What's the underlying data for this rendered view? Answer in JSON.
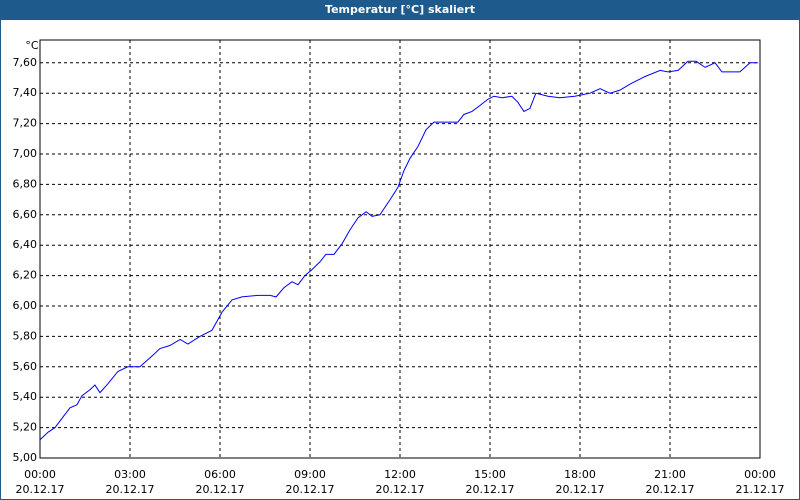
{
  "chart_data": {
    "type": "line",
    "title": "Temperatur [°C] skaliert",
    "y_label": "°C",
    "x": [
      0,
      0.27,
      0.5,
      0.73,
      1,
      1.23,
      1.4,
      1.67,
      1.83,
      2,
      2.27,
      2.6,
      2.93,
      3.33,
      3.73,
      4,
      4.33,
      4.67,
      4.93,
      5.33,
      5.73,
      6.07,
      6.4,
      6.73,
      7.27,
      7.67,
      7.87,
      8.13,
      8.4,
      8.6,
      8.83,
      9.07,
      9.33,
      9.53,
      9.8,
      10.07,
      10.33,
      10.6,
      10.87,
      11.07,
      11.33,
      11.67,
      11.93,
      12.13,
      12.33,
      12.6,
      12.87,
      13.13,
      13.6,
      13.93,
      14.13,
      14.4,
      14.67,
      14.93,
      15.13,
      15.4,
      15.73,
      15.93,
      16.13,
      16.33,
      16.53,
      16.93,
      17.33,
      17.83,
      18.33,
      18.67,
      19,
      19.33,
      19.67,
      20.17,
      20.67,
      20.93,
      21.27,
      21.6,
      21.87,
      22.17,
      22.5,
      22.73,
      23,
      23.33,
      23.67,
      23.93
    ],
    "series": [
      {
        "color": "#0000ff",
        "values": [
          5.12,
          5.17,
          5.2,
          5.26,
          5.33,
          5.35,
          5.41,
          5.45,
          5.48,
          5.43,
          5.49,
          5.57,
          5.6,
          5.6,
          5.67,
          5.72,
          5.74,
          5.78,
          5.75,
          5.8,
          5.84,
          5.96,
          6.04,
          6.06,
          6.07,
          6.07,
          6.06,
          6.12,
          6.16,
          6.14,
          6.2,
          6.24,
          6.29,
          6.34,
          6.34,
          6.41,
          6.5,
          6.58,
          6.62,
          6.59,
          6.6,
          6.7,
          6.78,
          6.89,
          6.97,
          7.05,
          7.16,
          7.21,
          7.21,
          7.21,
          7.26,
          7.28,
          7.32,
          7.36,
          7.38,
          7.37,
          7.38,
          7.34,
          7.28,
          7.3,
          7.4,
          7.38,
          7.37,
          7.38,
          7.4,
          7.43,
          7.4,
          7.42,
          7.46,
          7.51,
          7.55,
          7.54,
          7.55,
          7.61,
          7.61,
          7.57,
          7.6,
          7.54,
          7.54,
          7.54,
          7.6,
          7.6
        ]
      }
    ],
    "xlim": [
      0,
      24
    ],
    "xticks": [
      {
        "value": 0,
        "label": "00:00"
      },
      {
        "value": 3,
        "label": "03:00"
      },
      {
        "value": 6,
        "label": "06:00"
      },
      {
        "value": 9,
        "label": "09:00"
      },
      {
        "value": 12,
        "label": "12:00"
      },
      {
        "value": 15,
        "label": "15:00"
      },
      {
        "value": 18,
        "label": "18:00"
      },
      {
        "value": 21,
        "label": "21:00"
      },
      {
        "value": 24,
        "label": "00:00"
      }
    ],
    "xtick_dates": [
      "20.12.17",
      "20.12.17",
      "20.12.17",
      "20.12.17",
      "20.12.17",
      "20.12.17",
      "20.12.17",
      "20.12.17",
      "21.12.17"
    ],
    "ylim": [
      5,
      7.75
    ],
    "yticks": [
      {
        "value": 5,
        "label": "5,00"
      },
      {
        "value": 5.2,
        "label": "5,20"
      },
      {
        "value": 5.4,
        "label": "5,40"
      },
      {
        "value": 5.6,
        "label": "5,60"
      },
      {
        "value": 5.8,
        "label": "5,80"
      },
      {
        "value": 6,
        "label": "6,00"
      },
      {
        "value": 6.2,
        "label": "6,20"
      },
      {
        "value": 6.4,
        "label": "6,40"
      },
      {
        "value": 6.6,
        "label": "6,60"
      },
      {
        "value": 6.8,
        "label": "6,80"
      },
      {
        "value": 7,
        "label": "7,00"
      },
      {
        "value": 7.2,
        "label": "7,20"
      },
      {
        "value": 7.4,
        "label": "7,40"
      },
      {
        "value": 7.6,
        "label": "7,60"
      }
    ],
    "grid": true
  }
}
